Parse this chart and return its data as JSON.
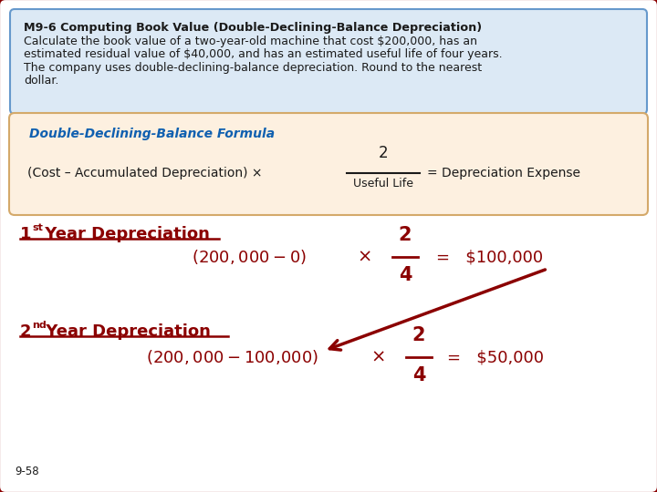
{
  "bg_color": "#ffffff",
  "outer_border_color": "#8B0000",
  "title_box_bg": "#dce9f5",
  "title_box_border": "#6699cc",
  "formula_box_bg": "#fdf0e0",
  "formula_box_border": "#d4a96a",
  "title_bold": "M9-6 Computing Book Value (Double-Declining-Balance Depreciation)",
  "title_body_line1": "Calculate the book value of a two-year-old machine that cost $200,000, has an",
  "title_body_line2": "estimated residual value of $40,000, and has an estimated useful life of four years.",
  "title_body_line3": "The company uses double-declining-balance depreciation. Round to the nearest",
  "title_body_line4": "dollar.",
  "formula_label": "Double-Declining-Balance Formula",
  "formula_left": "(Cost – Accumulated Depreciation) ×",
  "formula_num": "2",
  "formula_den": "Useful Life",
  "formula_right": "= Depreciation Expense",
  "year1_head": "1",
  "year1_sup": "st",
  "year1_tail": " Year Depreciation",
  "year1_left": "($200,000 - $0)",
  "year1_times": "×",
  "year1_num": "2",
  "year1_den": "4",
  "year1_result": "=   $100,000",
  "year2_head": "2",
  "year2_sup": "nd",
  "year2_tail": " Year Depreciation",
  "year2_left": "($200,000 - $100,000)",
  "year2_times": "×",
  "year2_num": "2",
  "year2_den": "4",
  "year2_result": "=   $50,000",
  "footer": "9-58",
  "dark_red": "#8B0000",
  "formula_label_color": "#1060b0",
  "black": "#1a1a1a"
}
